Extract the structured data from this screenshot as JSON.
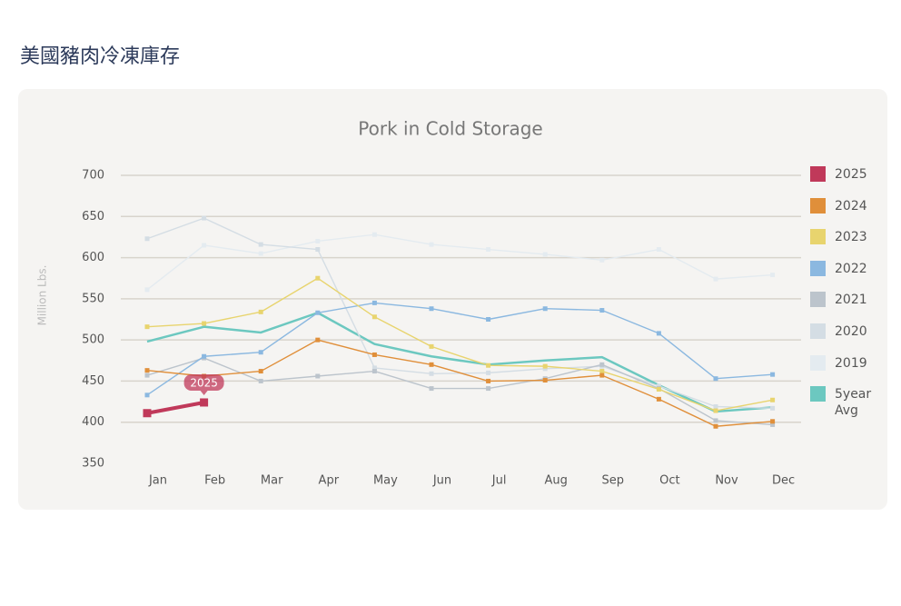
{
  "page_title": "美國豬肉冷凍庫存",
  "chart_data": {
    "type": "line",
    "title": "Pork in Cold Storage",
    "y_label": "Million Lbs.",
    "categories": [
      "Jan",
      "Feb",
      "Mar",
      "Apr",
      "May",
      "Jun",
      "Jul",
      "Aug",
      "Sep",
      "Oct",
      "Nov",
      "Dec"
    ],
    "ylim": [
      350,
      700
    ],
    "yticks": [
      350,
      400,
      450,
      500,
      550,
      600,
      650,
      700
    ],
    "grid": true,
    "legend": "right",
    "annotations": [
      {
        "text": "2025",
        "series": 0,
        "point": 1
      }
    ],
    "series": [
      {
        "name": "2025",
        "color": "#c0395a",
        "values": [
          411,
          424,
          null,
          null,
          null,
          null,
          null,
          null,
          null,
          null,
          null,
          null
        ]
      },
      {
        "name": "2024",
        "color": "#e08f3a",
        "values": [
          463,
          456,
          462,
          500,
          482,
          470,
          450,
          451,
          457,
          428,
          395,
          401
        ]
      },
      {
        "name": "2023",
        "color": "#e8d46e",
        "values": [
          516,
          520,
          534,
          575,
          528,
          492,
          469,
          468,
          462,
          440,
          414,
          427
        ]
      },
      {
        "name": "2022",
        "color": "#8bb8e0",
        "values": [
          433,
          480,
          485,
          533,
          545,
          538,
          525,
          538,
          536,
          508,
          453,
          458
        ]
      },
      {
        "name": "2021",
        "color": "#bcc4cc",
        "values": [
          457,
          478,
          450,
          456,
          462,
          441,
          441,
          453,
          470,
          441,
          402,
          397
        ]
      },
      {
        "name": "2020",
        "color": "#d4dde4",
        "values": [
          623,
          648,
          616,
          610,
          466,
          459,
          460,
          465,
          468,
          444,
          419,
          417
        ]
      },
      {
        "name": "2019",
        "color": "#e4ebf0",
        "values": [
          561,
          615,
          605,
          620,
          628,
          616,
          610,
          604,
          597,
          610,
          574,
          579
        ]
      },
      {
        "name": "5year Avg",
        "color": "#6cc8c0",
        "values": [
          498,
          516,
          509,
          533,
          495,
          480,
          470,
          475,
          479,
          445,
          413,
          418
        ]
      }
    ]
  }
}
